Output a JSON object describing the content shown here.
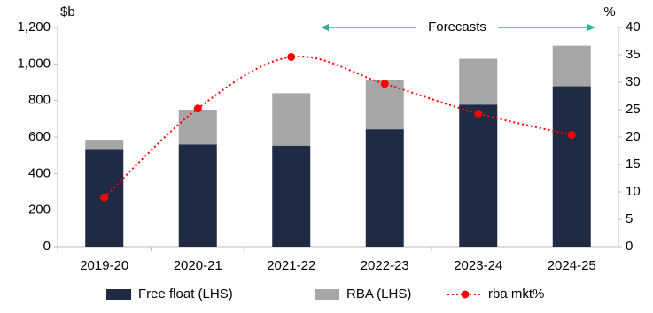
{
  "chart_data": {
    "type": "bar",
    "stacked": true,
    "y_label": "$b",
    "y2_label": "%",
    "annotation": "Forecasts",
    "categories": [
      "2019-20",
      "2020-21",
      "2021-22",
      "2022-23",
      "2023-24",
      "2024-25"
    ],
    "series": [
      {
        "name": "Free float (LHS)",
        "type": "bar",
        "color": "#1f2a44",
        "values": [
          530,
          560,
          553,
          643,
          778,
          878
        ]
      },
      {
        "name": "RBA (LHS)",
        "type": "bar",
        "color": "#a6a6a6",
        "values": [
          55,
          190,
          287,
          267,
          250,
          222
        ]
      },
      {
        "name": "rba mkt%",
        "type": "line",
        "axis": "y2",
        "color": "#ff0000",
        "values": [
          9,
          25.2,
          34.6,
          29.7,
          24.3,
          20.4
        ]
      }
    ],
    "ylim": [
      0,
      1200
    ],
    "yticks": [
      0,
      200,
      400,
      600,
      800,
      {
        "value": 1000,
        "label": "1,000"
      },
      {
        "value": 1200,
        "label": "1,200"
      }
    ],
    "y2lim": [
      0,
      40
    ],
    "y2ticks": [
      0,
      5,
      10,
      15,
      20,
      25,
      30,
      35,
      40
    ],
    "grid": false
  }
}
